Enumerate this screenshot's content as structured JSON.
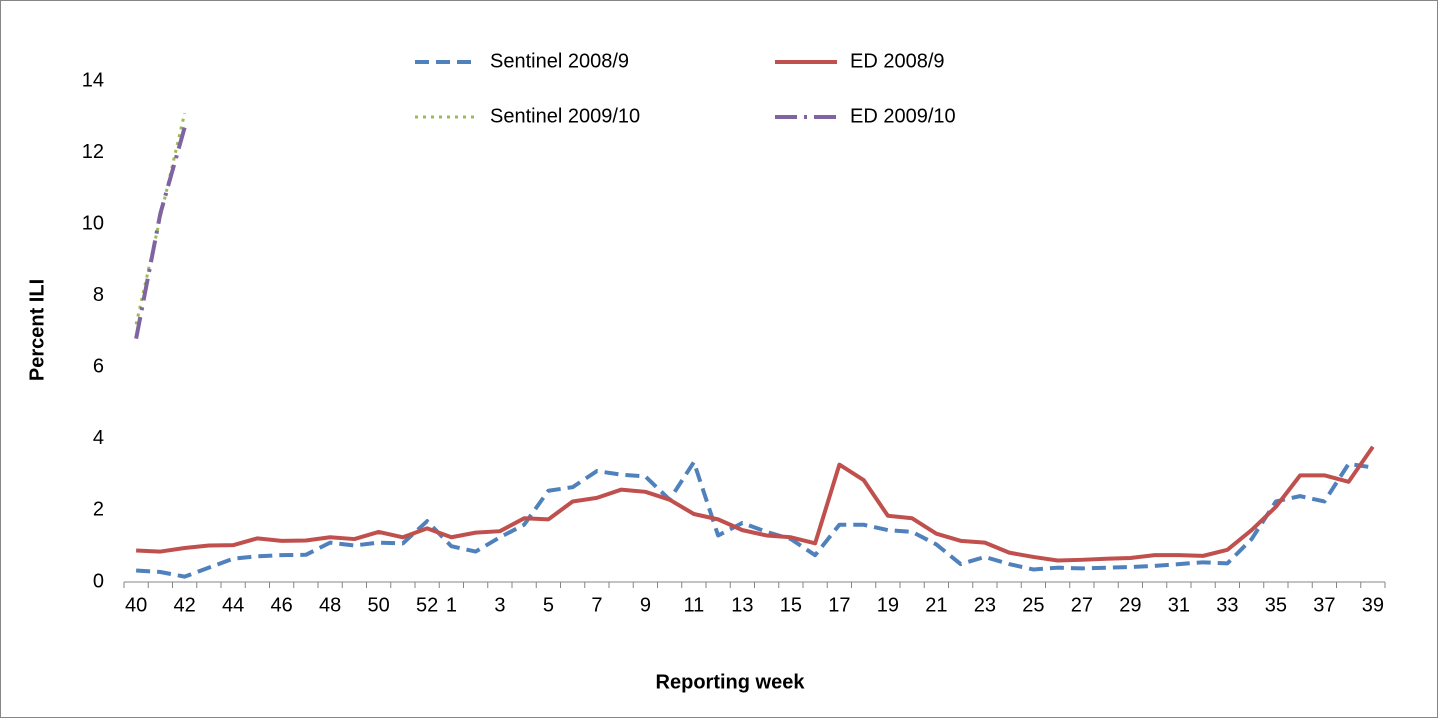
{
  "chart_data": {
    "type": "line",
    "y_label": "Percent ILI",
    "x_label": "Reporting week",
    "categories": [
      40,
      null,
      42,
      null,
      44,
      null,
      46,
      null,
      48,
      null,
      50,
      null,
      52,
      1,
      null,
      3,
      null,
      5,
      null,
      7,
      null,
      9,
      null,
      11,
      null,
      13,
      null,
      15,
      null,
      17,
      null,
      19,
      null,
      21,
      null,
      23,
      null,
      25,
      null,
      27,
      null,
      29,
      null,
      31,
      null,
      33,
      null,
      35,
      null,
      37,
      null,
      39
    ],
    "ylim": [
      0,
      14
    ],
    "yticks": [
      0,
      2,
      4,
      6,
      8,
      10,
      12,
      14
    ],
    "grid": false,
    "legend": "top",
    "series": [
      {
        "name": "Sentinel 2008/9",
        "color": "#4f81bd",
        "dash": "dashed",
        "values": [
          0.32,
          0.28,
          0.15,
          0.4,
          0.65,
          0.72,
          0.75,
          0.76,
          1.1,
          1.02,
          1.1,
          1.08,
          1.7,
          1.0,
          0.85,
          1.25,
          1.6,
          2.55,
          2.65,
          3.1,
          3.0,
          2.95,
          2.3,
          3.35,
          1.3,
          1.65,
          1.4,
          1.2,
          0.75,
          1.6,
          1.6,
          1.45,
          1.4,
          1.05,
          0.5,
          0.7,
          0.5,
          0.35,
          0.4,
          0.38,
          0.4,
          0.42,
          0.45,
          0.5,
          0.55,
          0.52,
          1.2,
          2.25,
          2.4,
          2.25,
          3.3,
          3.2
        ]
      },
      {
        "name": "ED 2008/9",
        "color": "#c0504d",
        "dash": "solid",
        "values": [
          0.88,
          0.85,
          0.95,
          1.02,
          1.03,
          1.22,
          1.15,
          1.16,
          1.25,
          1.2,
          1.4,
          1.25,
          1.5,
          1.25,
          1.38,
          1.42,
          1.78,
          1.75,
          2.25,
          2.35,
          2.58,
          2.52,
          2.3,
          1.9,
          1.75,
          1.45,
          1.3,
          1.25,
          1.08,
          3.28,
          2.85,
          1.85,
          1.78,
          1.35,
          1.15,
          1.1,
          0.82,
          0.7,
          0.6,
          0.62,
          0.65,
          0.67,
          0.75,
          0.75,
          0.73,
          0.9,
          1.45,
          2.1,
          2.98,
          2.98,
          2.8,
          3.78
        ]
      },
      {
        "name": "Sentinel 2009/10",
        "color": "#9bbb59",
        "dash": "dotted",
        "values": [
          7.2,
          10.2,
          13.1,
          null,
          null,
          null,
          null,
          null,
          null,
          null,
          null,
          null,
          null,
          null,
          null,
          null,
          null,
          null,
          null,
          null,
          null,
          null,
          null,
          null,
          null,
          null,
          null,
          null,
          null,
          null,
          null,
          null,
          null,
          null,
          null,
          null,
          null,
          null,
          null,
          null,
          null,
          null,
          null,
          null,
          null,
          null,
          null,
          null,
          null,
          null,
          null,
          null
        ]
      },
      {
        "name": "ED 2009/10",
        "color": "#8064a2",
        "dash": "dashdot",
        "values": [
          6.8,
          10.3,
          12.7,
          null,
          null,
          null,
          null,
          null,
          null,
          null,
          null,
          null,
          null,
          null,
          null,
          null,
          null,
          null,
          null,
          null,
          null,
          null,
          null,
          null,
          null,
          null,
          null,
          null,
          null,
          null,
          null,
          null,
          null,
          null,
          null,
          null,
          null,
          null,
          null,
          null,
          null,
          null,
          null,
          null,
          null,
          null,
          null,
          null,
          null,
          null,
          null,
          null
        ]
      }
    ]
  }
}
